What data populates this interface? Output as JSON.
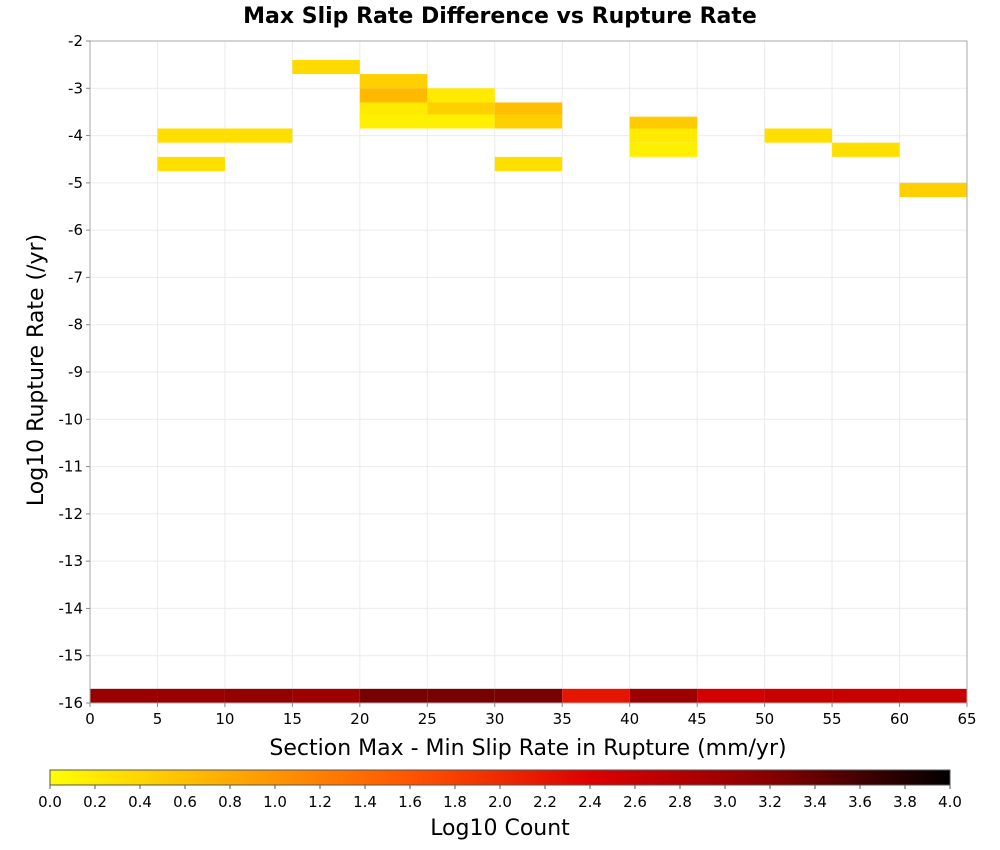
{
  "chart_data": {
    "type": "heatmap",
    "title": "Max Slip Rate Difference vs Rupture Rate",
    "xlabel": "Section Max - Min Slip Rate in Rupture (mm/yr)",
    "ylabel": "Log10 Rupture Rate (/yr)",
    "xlim": [
      0,
      65
    ],
    "ylim": [
      -16,
      -2
    ],
    "x_ticks": [
      "0",
      "5",
      "10",
      "15",
      "20",
      "25",
      "30",
      "35",
      "40",
      "45",
      "50",
      "55",
      "60",
      "65"
    ],
    "y_ticks": [
      "-2",
      "-3",
      "-4",
      "-5",
      "-6",
      "-7",
      "-8",
      "-9",
      "-10",
      "-11",
      "-12",
      "-13",
      "-14",
      "-15",
      "-16"
    ],
    "bin_width_x": 5,
    "bin_height_y": 0.3,
    "grid": true,
    "colorbar": {
      "label": "Log10 Count",
      "min": 0.0,
      "max": 4.0,
      "ticks": [
        "0.0",
        "0.2",
        "0.4",
        "0.6",
        "0.8",
        "1.0",
        "1.2",
        "1.4",
        "1.6",
        "1.8",
        "2.0",
        "2.2",
        "2.4",
        "2.6",
        "2.8",
        "3.0",
        "3.2",
        "3.4",
        "3.6",
        "3.8",
        "4.0"
      ],
      "colors": [
        "#ffff00",
        "#ffaa00",
        "#ff5500",
        "#dd0000",
        "#880000",
        "#000000"
      ]
    },
    "cells": [
      {
        "x0": 15,
        "y0": -2.7,
        "value": 0.35
      },
      {
        "x0": 20,
        "y0": -3.0,
        "value": 0.45
      },
      {
        "x0": 20,
        "y0": -3.3,
        "value": 0.65
      },
      {
        "x0": 20,
        "y0": -3.6,
        "value": 0.2
      },
      {
        "x0": 20,
        "y0": -3.85,
        "value": 0.15
      },
      {
        "x0": 25,
        "y0": -3.3,
        "value": 0.2
      },
      {
        "x0": 25,
        "y0": -3.6,
        "value": 0.45
      },
      {
        "x0": 25,
        "y0": -3.85,
        "value": 0.15
      },
      {
        "x0": 30,
        "y0": -3.6,
        "value": 0.6
      },
      {
        "x0": 30,
        "y0": -3.85,
        "value": 0.45
      },
      {
        "x0": 5,
        "y0": -4.15,
        "value": 0.3
      },
      {
        "x0": 10,
        "y0": -4.15,
        "value": 0.3
      },
      {
        "x0": 5,
        "y0": -4.75,
        "value": 0.3
      },
      {
        "x0": 30,
        "y0": -4.75,
        "value": 0.3
      },
      {
        "x0": 40,
        "y0": -3.9,
        "value": 0.5
      },
      {
        "x0": 40,
        "y0": -4.15,
        "value": 0.2
      },
      {
        "x0": 40,
        "y0": -4.45,
        "value": 0.15
      },
      {
        "x0": 50,
        "y0": -4.15,
        "value": 0.3
      },
      {
        "x0": 55,
        "y0": -4.45,
        "value": 0.3
      },
      {
        "x0": 60,
        "y0": -5.3,
        "value": 0.45
      },
      {
        "x0": 0,
        "y0": -16.0,
        "value": 3.05
      },
      {
        "x0": 5,
        "y0": -16.0,
        "value": 3.05
      },
      {
        "x0": 10,
        "y0": -16.0,
        "value": 3.1
      },
      {
        "x0": 15,
        "y0": -16.0,
        "value": 3.0
      },
      {
        "x0": 20,
        "y0": -16.0,
        "value": 3.3
      },
      {
        "x0": 25,
        "y0": -16.0,
        "value": 3.3
      },
      {
        "x0": 30,
        "y0": -16.0,
        "value": 3.3
      },
      {
        "x0": 35,
        "y0": -16.0,
        "value": 2.2
      },
      {
        "x0": 40,
        "y0": -16.0,
        "value": 3.0
      },
      {
        "x0": 45,
        "y0": -16.0,
        "value": 2.5
      },
      {
        "x0": 50,
        "y0": -16.0,
        "value": 2.6
      },
      {
        "x0": 55,
        "y0": -16.0,
        "value": 2.6
      },
      {
        "x0": 60,
        "y0": -16.0,
        "value": 2.6
      }
    ]
  }
}
